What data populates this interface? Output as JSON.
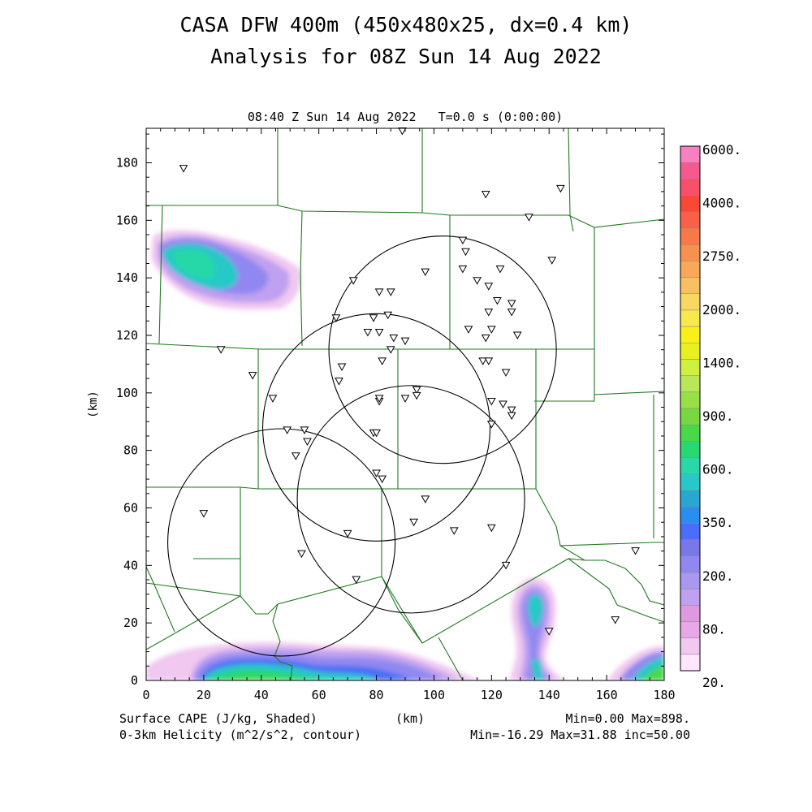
{
  "title_line1": "CASA DFW 400m (450x480x25, dx=0.4 km)",
  "title_line2": "Analysis for 08Z Sun 14 Aug 2022",
  "time_label": "08:40 Z Sun 14 Aug 2022   T=0.0 s (0:00:00)",
  "x_axis": {
    "label": "(km)",
    "ticks": [
      "0",
      "20",
      "40",
      "60",
      "80",
      "100",
      "120",
      "140",
      "160",
      "180"
    ],
    "range": [
      0,
      180
    ]
  },
  "y_axis": {
    "label": "(km)",
    "ticks": [
      "0",
      "20",
      "40",
      "60",
      "80",
      "100",
      "120",
      "140",
      "160",
      "180"
    ],
    "range": [
      0,
      192
    ]
  },
  "footer": {
    "left1": "Surface CAPE (J/kg, Shaded)",
    "left2": "0-3km Helicity (m^2/s^2, contour)",
    "center": "(km)",
    "right1": "Min=0.00 Max=898.",
    "right2": "Min=-16.29 Max=31.88 inc=50.00"
  },
  "colorbar": {
    "labels": [
      "6000.",
      "4000.",
      "2750.",
      "2000.",
      "1400.",
      "900.",
      "600.",
      "350.",
      "200.",
      "80.",
      "20."
    ],
    "colors": [
      "#ffe6fb",
      "#f0c8f0",
      "#e8a8e8",
      "#e098e0",
      "#c0a0f0",
      "#a898f0",
      "#9088f0",
      "#7878e8",
      "#4a6ef8",
      "#2a8ef0",
      "#28a8d0",
      "#28c8c8",
      "#28d8a8",
      "#28d870",
      "#48d848",
      "#78d840",
      "#98e048",
      "#b8e858",
      "#d0f040",
      "#e8f020",
      "#f8f018",
      "#f8e850",
      "#f8d860",
      "#f8c060",
      "#f8a858",
      "#f89050",
      "#f87848",
      "#f86048",
      "#f84838",
      "#f85068",
      "#f85890",
      "#f880c0"
    ],
    "stops": [
      20,
      80,
      200,
      350,
      600,
      900,
      1400,
      2000,
      2750,
      4000,
      6000
    ]
  },
  "radar_circles": [
    {
      "x": 103,
      "y": 115,
      "r": 39.5
    },
    {
      "x": 80,
      "y": 88,
      "r": 39.5
    },
    {
      "x": 92,
      "y": 63,
      "r": 39.5
    },
    {
      "x": 47,
      "y": 48,
      "r": 39.5
    }
  ],
  "stations": [
    [
      13,
      178
    ],
    [
      89,
      191
    ],
    [
      118,
      169
    ],
    [
      144,
      171
    ],
    [
      133,
      161
    ],
    [
      141,
      146
    ],
    [
      110,
      153
    ],
    [
      111,
      149
    ],
    [
      110,
      143
    ],
    [
      97,
      142
    ],
    [
      115,
      139
    ],
    [
      123,
      143
    ],
    [
      119,
      137
    ],
    [
      122,
      132
    ],
    [
      127,
      131
    ],
    [
      127,
      128
    ],
    [
      119,
      128
    ],
    [
      120,
      122
    ],
    [
      112,
      122
    ],
    [
      118,
      119
    ],
    [
      129,
      120
    ],
    [
      72,
      139
    ],
    [
      81,
      135
    ],
    [
      85,
      135
    ],
    [
      79,
      126
    ],
    [
      84,
      127
    ],
    [
      66,
      126
    ],
    [
      77,
      121
    ],
    [
      81,
      121
    ],
    [
      86,
      119
    ],
    [
      90,
      118
    ],
    [
      85,
      115
    ],
    [
      82,
      111
    ],
    [
      26,
      115
    ],
    [
      37,
      106
    ],
    [
      68,
      109
    ],
    [
      67,
      104
    ],
    [
      44,
      98
    ],
    [
      94,
      101
    ],
    [
      94,
      99
    ],
    [
      90,
      98
    ],
    [
      81,
      97
    ],
    [
      81,
      98
    ],
    [
      117,
      111
    ],
    [
      119,
      111
    ],
    [
      125,
      107
    ],
    [
      120,
      97
    ],
    [
      124,
      96
    ],
    [
      127,
      94
    ],
    [
      127,
      92
    ],
    [
      120,
      89
    ],
    [
      49,
      87
    ],
    [
      55,
      87
    ],
    [
      56,
      83
    ],
    [
      52,
      78
    ],
    [
      79,
      86
    ],
    [
      80,
      86
    ],
    [
      80,
      72
    ],
    [
      82,
      70
    ],
    [
      97,
      63
    ],
    [
      20,
      58
    ],
    [
      93,
      55
    ],
    [
      107,
      52
    ],
    [
      120,
      53
    ],
    [
      70,
      51
    ],
    [
      54,
      44
    ],
    [
      73,
      35
    ],
    [
      125,
      40
    ],
    [
      170,
      45
    ],
    [
      163,
      21
    ],
    [
      140,
      17
    ]
  ]
}
